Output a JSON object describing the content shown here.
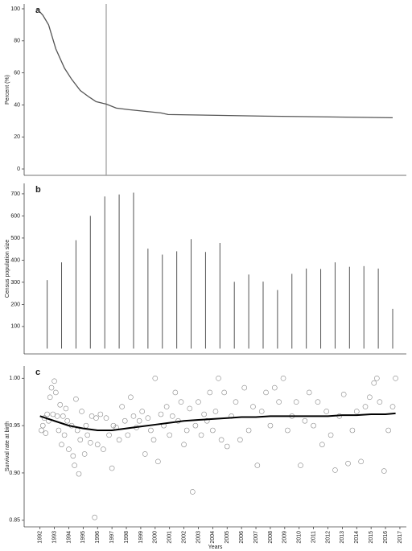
{
  "chart_data": [
    {
      "type": "line",
      "panel_label": "a",
      "ylabel": "Percent (%)",
      "color": "#555555",
      "x": [
        1991.8,
        1992.2,
        1992.6,
        1993.1,
        1993.7,
        1994.2,
        1994.8,
        1995.4,
        1995.9,
        1996.6,
        1997.3,
        1998.2,
        1999.3,
        2000.4,
        2000.9,
        2004.3,
        2007.6,
        2016.5
      ],
      "values": [
        100,
        96,
        90,
        75,
        63,
        56,
        49,
        45,
        42,
        40.5,
        38,
        37,
        36,
        35,
        34,
        33.5,
        33,
        32
      ],
      "reference_x": 1996.6,
      "reference_color": "#999999",
      "xlim": [
        1990.9,
        2017.45
      ],
      "ylim": [
        -4,
        103
      ],
      "yticks": [
        0,
        20,
        40,
        60,
        80,
        100
      ]
    },
    {
      "type": "bar",
      "panel_label": "b",
      "ylabel": "Census population size",
      "color": "#555555",
      "x": [
        1992.5,
        1993.5,
        1994.5,
        1995.5,
        1996.5,
        1997.5,
        1998.5,
        1999.5,
        2000.5,
        2001.5,
        2002.5,
        2003.5,
        2004.5,
        2005.5,
        2006.5,
        2007.5,
        2008.5,
        2009.5,
        2010.5,
        2011.5,
        2012.5,
        2013.5,
        2014.5,
        2015.5,
        2016.5
      ],
      "values": [
        310,
        390,
        490,
        600,
        688,
        697,
        705,
        452,
        425,
        440,
        495,
        437,
        478,
        302,
        335,
        303,
        265,
        338,
        362,
        360,
        390,
        370,
        373,
        362,
        180
      ],
      "xlim": [
        1990.9,
        2017.45
      ],
      "ylim": [
        -24,
        747
      ],
      "yticks": [
        100,
        200,
        300,
        400,
        500,
        600,
        700
      ]
    },
    {
      "type": "scatter",
      "panel_label": "c",
      "ylabel": "Survival rate at birth",
      "xlabel": "Years",
      "color": "#888888",
      "trend_color": "#000000",
      "x": [
        1992.1,
        1992.2,
        1992.3,
        1992.4,
        1992.5,
        1992.6,
        1992.7,
        1992.8,
        1992.9,
        1993.0,
        1993.1,
        1993.2,
        1993.3,
        1993.4,
        1993.5,
        1993.6,
        1993.7,
        1993.8,
        1993.9,
        1994.0,
        1994.2,
        1994.3,
        1994.4,
        1994.5,
        1994.6,
        1994.7,
        1994.8,
        1994.9,
        1995.1,
        1995.2,
        1995.3,
        1995.5,
        1995.6,
        1995.8,
        1995.9,
        1996.0,
        1996.2,
        1996.4,
        1996.6,
        1996.8,
        1997.0,
        1997.1,
        1997.3,
        1997.5,
        1997.7,
        1997.9,
        1998.1,
        1998.3,
        1998.5,
        1998.7,
        1998.9,
        1999.1,
        1999.3,
        1999.5,
        1999.7,
        1999.9,
        2000.0,
        2000.2,
        2000.4,
        2000.6,
        2000.8,
        2001.0,
        2001.2,
        2001.4,
        2001.6,
        2001.8,
        2002.0,
        2002.2,
        2002.4,
        2002.6,
        2002.8,
        2003.0,
        2003.2,
        2003.4,
        2003.6,
        2003.8,
        2004.0,
        2004.2,
        2004.4,
        2004.6,
        2004.8,
        2005.0,
        2005.3,
        2005.6,
        2005.9,
        2006.2,
        2006.5,
        2006.8,
        2007.1,
        2007.4,
        2007.7,
        2008.0,
        2008.3,
        2008.6,
        2008.9,
        2009.2,
        2009.5,
        2009.8,
        2010.1,
        2010.4,
        2010.7,
        2011.0,
        2011.3,
        2011.6,
        2011.9,
        2012.2,
        2012.5,
        2012.8,
        2013.1,
        2013.4,
        2013.7,
        2014.0,
        2014.3,
        2014.6,
        2014.9,
        2015.2,
        2015.4,
        2015.6,
        2015.9,
        2016.2,
        2016.5,
        2016.7
      ],
      "values": [
        0.945,
        0.95,
        0.958,
        0.942,
        0.962,
        0.955,
        0.98,
        0.99,
        0.962,
        0.997,
        0.985,
        0.96,
        0.945,
        0.972,
        0.93,
        0.96,
        0.94,
        0.968,
        0.955,
        0.925,
        0.95,
        0.918,
        0.908,
        0.978,
        0.945,
        0.899,
        0.935,
        0.965,
        0.92,
        0.95,
        0.94,
        0.932,
        0.96,
        0.853,
        0.958,
        0.93,
        0.962,
        0.925,
        0.958,
        0.94,
        0.905,
        0.95,
        0.948,
        0.935,
        0.97,
        0.955,
        0.94,
        0.98,
        0.96,
        0.948,
        0.955,
        0.965,
        0.92,
        0.958,
        0.945,
        0.935,
        1.0,
        0.912,
        0.962,
        0.95,
        0.97,
        0.94,
        0.96,
        0.985,
        0.955,
        0.975,
        0.93,
        0.945,
        0.968,
        0.88,
        0.95,
        0.975,
        0.94,
        0.962,
        0.955,
        0.985,
        0.945,
        0.965,
        1.0,
        0.935,
        0.985,
        0.928,
        0.96,
        0.975,
        0.935,
        0.99,
        0.945,
        0.97,
        0.908,
        0.965,
        0.985,
        0.95,
        0.99,
        0.975,
        1.0,
        0.945,
        0.96,
        0.975,
        0.908,
        0.955,
        0.985,
        0.95,
        0.975,
        0.93,
        0.965,
        0.94,
        0.903,
        0.96,
        0.983,
        0.91,
        0.945,
        0.965,
        0.912,
        0.97,
        0.98,
        0.995,
        1.0,
        0.975,
        0.902,
        0.945,
        0.97,
        1.0
      ],
      "trend_x": [
        1992,
        1993,
        1994,
        1995,
        1996,
        1997,
        1998,
        1999,
        2000,
        2001,
        2002,
        2003,
        2004,
        2005,
        2006,
        2007,
        2008,
        2009,
        2010,
        2011,
        2012,
        2013,
        2014,
        2015,
        2016,
        2016.7
      ],
      "trend_values": [
        0.96,
        0.955,
        0.95,
        0.947,
        0.945,
        0.945,
        0.947,
        0.949,
        0.951,
        0.953,
        0.955,
        0.956,
        0.957,
        0.958,
        0.959,
        0.959,
        0.96,
        0.96,
        0.96,
        0.96,
        0.96,
        0.961,
        0.961,
        0.962,
        0.962,
        0.963
      ],
      "xlim": [
        1990.9,
        2017.45
      ],
      "ylim": [
        0.843,
        1.013
      ],
      "yticks": [
        0.85,
        {
          "value": 0.9,
          "label": "0.90"
        },
        0.95,
        {
          "value": 1,
          "label": "1.00"
        }
      ],
      "xticks": [
        1992,
        1993,
        1994,
        1995,
        1996,
        1997,
        1998,
        1999,
        2000,
        2001,
        2002,
        2003,
        2004,
        2005,
        2006,
        2007,
        2008,
        2009,
        2010,
        2011,
        2012,
        2013,
        2014,
        2015,
        2016,
        2017
      ]
    }
  ]
}
